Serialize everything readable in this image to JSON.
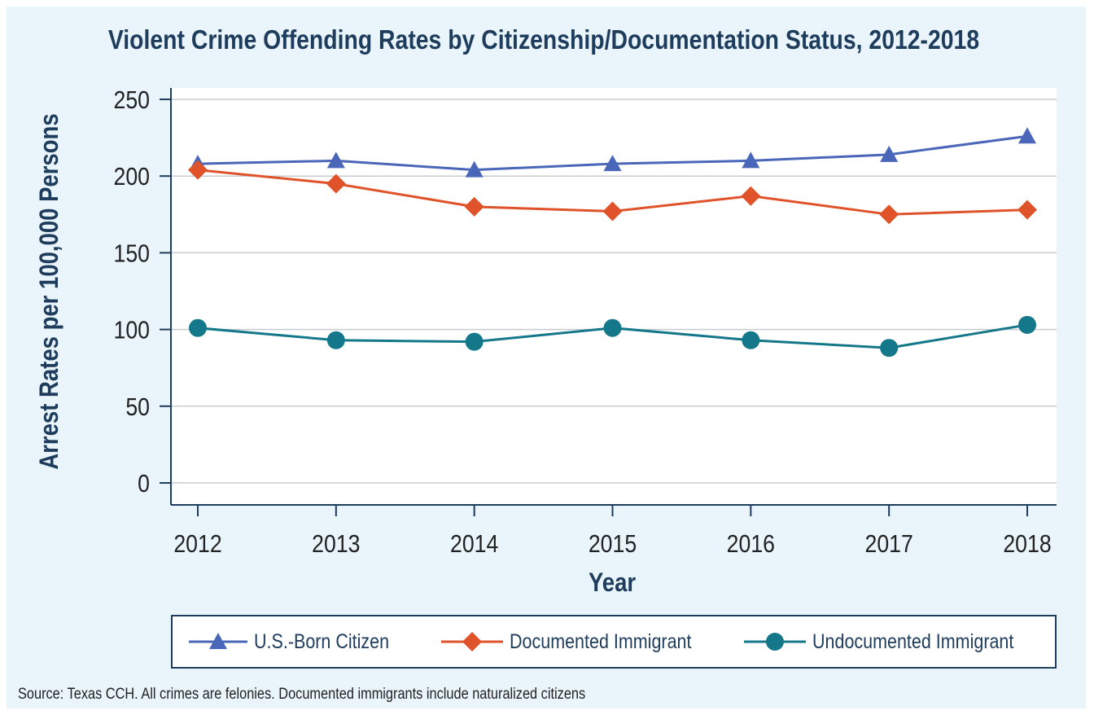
{
  "chart_data": {
    "type": "line",
    "title": "Violent Crime Offending Rates by Citizenship/Documentation Status, 2012-2018",
    "xlabel": "Year",
    "ylabel": "Arrest Rates per 100,000 Persons",
    "categories": [
      "2012",
      "2013",
      "2014",
      "2015",
      "2016",
      "2017",
      "2018"
    ],
    "y_ticks": [
      "0",
      "50",
      "100",
      "150",
      "200",
      "250"
    ],
    "ylim": [
      0,
      250
    ],
    "grid": "horizontal",
    "legend_position": "bottom",
    "series": [
      {
        "name": "U.S.-Born Citizen",
        "marker": "triangle",
        "color": "#4a66b8",
        "values": [
          208,
          210,
          204,
          208,
          210,
          214,
          226
        ]
      },
      {
        "name": "Documented Immigrant",
        "marker": "diamond",
        "color": "#e0532a",
        "values": [
          204,
          195,
          180,
          177,
          187,
          175,
          178
        ]
      },
      {
        "name": "Undocumented Immigrant",
        "marker": "circle",
        "color": "#15788a",
        "values": [
          101,
          93,
          92,
          101,
          93,
          88,
          103
        ]
      }
    ]
  },
  "source": "Source: Texas CCH. All crimes are felonies. Documented immigrants include naturalized citizens"
}
